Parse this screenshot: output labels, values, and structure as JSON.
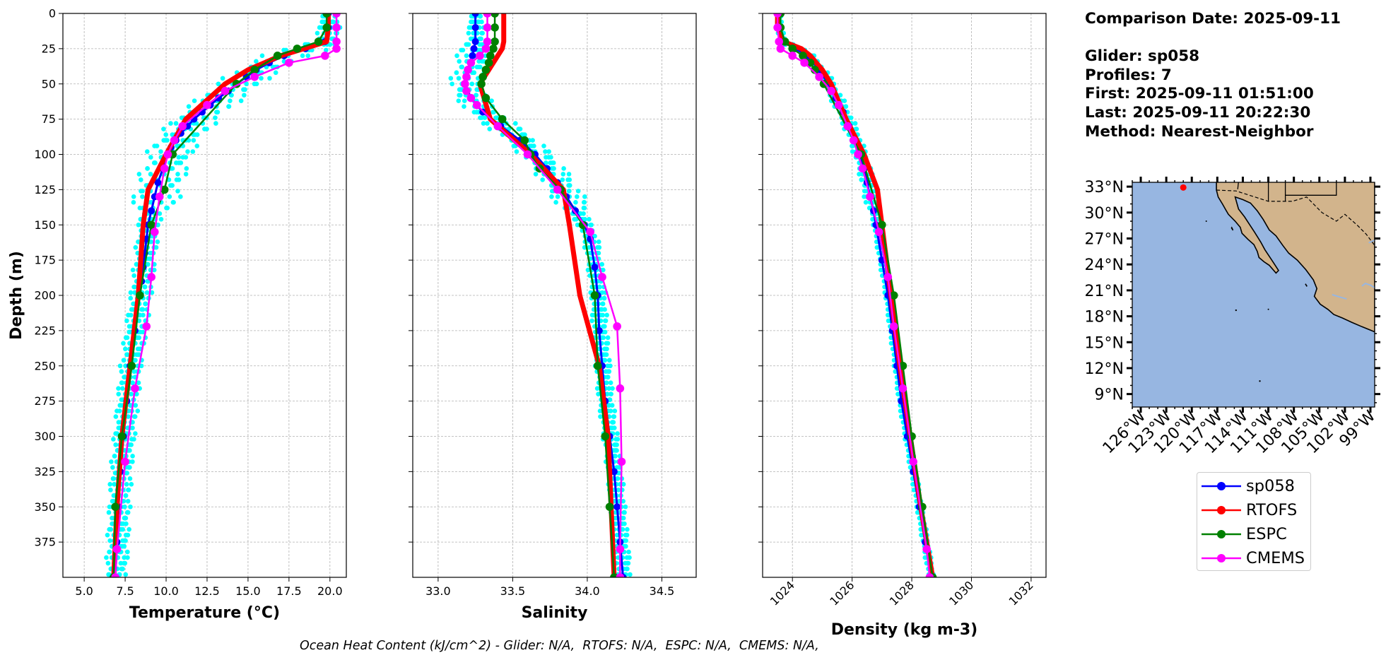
{
  "info": {
    "comparison_date": "Comparison Date: 2025-09-11",
    "glider": "Glider: sp058",
    "profiles": "Profiles: 7",
    "first": "First: 2025-09-11 01:51:00",
    "last": "Last: 2025-09-11 20:22:30",
    "method": "Method: Nearest-Neighbor"
  },
  "footer": "Ocean Heat Content (kJ/cm^2) - Glider: N/A,  RTOFS: N/A,  ESPC: N/A,  CMEMS: N/A,",
  "colors": {
    "glider": "#0000ff",
    "rtofs": "#ff0000",
    "espc": "#008000",
    "cmems": "#ff00ff",
    "glider_profiles": "#00ffff",
    "ocean": "#97b6e1",
    "land": "#d2b48c"
  },
  "legend": [
    {
      "label": "sp058",
      "color": "#0000ff"
    },
    {
      "label": "RTOFS",
      "color": "#ff0000"
    },
    {
      "label": "ESPC",
      "color": "#008000"
    },
    {
      "label": "CMEMS",
      "color": "#ff00ff"
    }
  ],
  "chart_data": [
    {
      "type": "line",
      "xlabel": "Temperature (°C)",
      "ylabel": "Depth (m)",
      "xlim": [
        3.7,
        21.0
      ],
      "ylim": [
        400,
        0
      ],
      "y_inverted": true,
      "xticks": [
        "5.0",
        "7.5",
        "10.0",
        "12.5",
        "15.0",
        "17.5",
        "20.0"
      ],
      "yticks": [
        "0",
        "25",
        "50",
        "75",
        "100",
        "125",
        "150",
        "175",
        "200",
        "225",
        "250",
        "275",
        "300",
        "325",
        "350",
        "375"
      ],
      "grid": true,
      "series": [
        {
          "name": "sp058",
          "depth": [
            0,
            10,
            20,
            25,
            30,
            35,
            40,
            45,
            50,
            55,
            60,
            65,
            70,
            75,
            80,
            85,
            90,
            95,
            100,
            110,
            120,
            130,
            140,
            150,
            160,
            170,
            180,
            190,
            200,
            225,
            250,
            275,
            300,
            325,
            350,
            375,
            400
          ],
          "values": [
            19.9,
            19.9,
            19.7,
            18.5,
            17.2,
            16.3,
            15.5,
            14.9,
            14.3,
            13.8,
            13.2,
            12.7,
            12.2,
            11.7,
            11.3,
            10.9,
            10.6,
            10.3,
            10.1,
            9.8,
            9.5,
            9.3,
            9.1,
            8.9,
            8.8,
            8.7,
            8.6,
            8.5,
            8.4,
            8.1,
            7.8,
            7.6,
            7.4,
            7.2,
            7.1,
            7.0,
            6.9
          ]
        },
        {
          "name": "RTOFS",
          "depth": [
            0,
            10,
            20,
            30,
            40,
            50,
            75,
            100,
            125,
            150,
            200,
            250,
            300,
            350,
            400
          ],
          "values": [
            19.9,
            19.9,
            19.8,
            17.0,
            15.0,
            13.6,
            11.2,
            10.0,
            8.9,
            8.6,
            8.3,
            7.8,
            7.3,
            7.0,
            6.8
          ]
        },
        {
          "name": "ESPC",
          "depth": [
            0,
            10,
            20,
            25,
            30,
            40,
            50,
            100,
            125,
            150,
            200,
            250,
            300,
            350,
            400
          ],
          "values": [
            19.8,
            19.8,
            19.3,
            18.0,
            16.8,
            15.4,
            14.3,
            10.4,
            9.9,
            9.1,
            8.4,
            7.9,
            7.3,
            6.9,
            6.8
          ]
        },
        {
          "name": "CMEMS",
          "depth": [
            0,
            10,
            20,
            25,
            30,
            35,
            45,
            55,
            65,
            80,
            90,
            100,
            110,
            130,
            155,
            187,
            222,
            266,
            318,
            380,
            400
          ],
          "values": [
            20.4,
            20.4,
            20.4,
            20.4,
            19.7,
            17.5,
            15.4,
            13.6,
            12.5,
            11.0,
            10.5,
            10.1,
            9.9,
            9.6,
            9.3,
            9.1,
            8.8,
            8.1,
            7.5,
            7.0,
            6.9
          ]
        }
      ]
    },
    {
      "type": "line",
      "xlabel": "Salinity",
      "xlim": [
        32.83,
        34.73
      ],
      "ylim": [
        400,
        0
      ],
      "y_inverted": true,
      "xticks": [
        "33.0",
        "33.5",
        "34.0",
        "34.5"
      ],
      "grid": true,
      "series": [
        {
          "name": "sp058",
          "depth": [
            0,
            10,
            20,
            25,
            30,
            40,
            50,
            60,
            70,
            80,
            90,
            100,
            110,
            120,
            130,
            140,
            150,
            160,
            180,
            200,
            225,
            250,
            275,
            300,
            325,
            350,
            375,
            400
          ],
          "values": [
            33.25,
            33.25,
            33.25,
            33.24,
            33.23,
            33.2,
            33.18,
            33.22,
            33.3,
            33.42,
            33.55,
            33.65,
            33.73,
            33.8,
            33.86,
            33.92,
            33.98,
            34.02,
            34.05,
            34.07,
            34.08,
            34.1,
            34.12,
            34.15,
            34.18,
            34.2,
            34.22,
            34.24
          ]
        },
        {
          "name": "RTOFS",
          "depth": [
            0,
            10,
            20,
            25,
            50,
            75,
            100,
            125,
            150,
            200,
            250,
            300,
            350,
            400
          ],
          "values": [
            33.44,
            33.44,
            33.44,
            33.43,
            33.28,
            33.35,
            33.62,
            33.84,
            33.88,
            33.95,
            34.08,
            34.14,
            34.16,
            34.18
          ]
        },
        {
          "name": "ESPC",
          "depth": [
            0,
            10,
            20,
            25,
            30,
            35,
            40,
            45,
            50,
            60,
            75,
            90,
            100,
            110,
            125,
            150,
            200,
            250,
            300,
            350,
            400
          ],
          "values": [
            33.38,
            33.38,
            33.38,
            33.37,
            33.35,
            33.34,
            33.32,
            33.3,
            33.29,
            33.32,
            33.43,
            33.58,
            33.62,
            33.68,
            33.82,
            33.97,
            34.05,
            34.07,
            34.12,
            34.15,
            34.18
          ]
        },
        {
          "name": "CMEMS",
          "depth": [
            0,
            10,
            20,
            25,
            30,
            35,
            40,
            45,
            50,
            55,
            60,
            65,
            80,
            100,
            125,
            155,
            187,
            222,
            266,
            318,
            380,
            400
          ],
          "values": [
            33.33,
            33.33,
            33.33,
            33.32,
            33.28,
            33.22,
            33.2,
            33.19,
            33.18,
            33.19,
            33.22,
            33.26,
            33.4,
            33.6,
            33.8,
            34.02,
            34.1,
            34.2,
            34.22,
            34.23,
            34.22,
            34.22
          ]
        }
      ]
    },
    {
      "type": "line",
      "xlabel": "Density (kg m-3)",
      "xlim": [
        1023.0,
        1032.5
      ],
      "ylim": [
        400,
        0
      ],
      "y_inverted": true,
      "xticks": [
        "1024",
        "1026",
        "1028",
        "1030",
        "1032"
      ],
      "grid": true,
      "series": [
        {
          "name": "sp058",
          "depth": [
            0,
            10,
            20,
            25,
            30,
            40,
            50,
            60,
            70,
            80,
            90,
            100,
            110,
            120,
            130,
            140,
            150,
            175,
            200,
            225,
            250,
            275,
            300,
            325,
            350,
            375,
            400
          ],
          "values": [
            1023.55,
            1023.55,
            1023.7,
            1024.1,
            1024.5,
            1024.9,
            1025.2,
            1025.45,
            1025.7,
            1025.9,
            1026.1,
            1026.25,
            1026.4,
            1026.5,
            1026.6,
            1026.72,
            1026.8,
            1027.0,
            1027.2,
            1027.35,
            1027.5,
            1027.65,
            1027.85,
            1028.05,
            1028.25,
            1028.45,
            1028.65
          ]
        },
        {
          "name": "RTOFS",
          "depth": [
            0,
            10,
            20,
            25,
            30,
            40,
            50,
            75,
            100,
            125,
            150,
            200,
            250,
            300,
            350,
            400
          ],
          "values": [
            1023.5,
            1023.5,
            1023.7,
            1024.3,
            1024.6,
            1025.0,
            1025.3,
            1025.8,
            1026.4,
            1026.85,
            1027.0,
            1027.3,
            1027.6,
            1027.95,
            1028.3,
            1028.7
          ]
        },
        {
          "name": "ESPC",
          "depth": [
            0,
            10,
            20,
            25,
            30,
            35,
            40,
            45,
            50,
            100,
            150,
            200,
            250,
            300,
            350,
            400
          ],
          "values": [
            1023.6,
            1023.6,
            1023.75,
            1024.0,
            1024.35,
            1024.6,
            1024.75,
            1024.9,
            1025.05,
            1026.3,
            1027.0,
            1027.4,
            1027.7,
            1028.0,
            1028.35,
            1028.7
          ]
        },
        {
          "name": "CMEMS",
          "depth": [
            0,
            10,
            20,
            25,
            30,
            35,
            45,
            55,
            65,
            80,
            90,
            100,
            110,
            130,
            155,
            187,
            222,
            266,
            318,
            380,
            400
          ],
          "values": [
            1023.5,
            1023.5,
            1023.55,
            1023.6,
            1024.0,
            1024.4,
            1024.9,
            1025.3,
            1025.55,
            1025.85,
            1026.05,
            1026.2,
            1026.35,
            1026.6,
            1026.9,
            1027.2,
            1027.4,
            1027.7,
            1028.05,
            1028.5,
            1028.6
          ]
        }
      ]
    },
    {
      "type": "map",
      "lat_ticks": [
        "33°N",
        "30°N",
        "27°N",
        "24°N",
        "21°N",
        "18°N",
        "15°N",
        "12°N",
        "9°N"
      ],
      "lon_ticks": [
        "126°W",
        "123°W",
        "120°W",
        "117°W",
        "114°W",
        "111°W",
        "108°W",
        "105°W",
        "102°W",
        "99°W"
      ],
      "lat_range": [
        7.5,
        33.5
      ],
      "lon_range": [
        -127.0,
        -98.5
      ],
      "glider_location": {
        "lon": -121.0,
        "lat": 32.9
      }
    }
  ]
}
